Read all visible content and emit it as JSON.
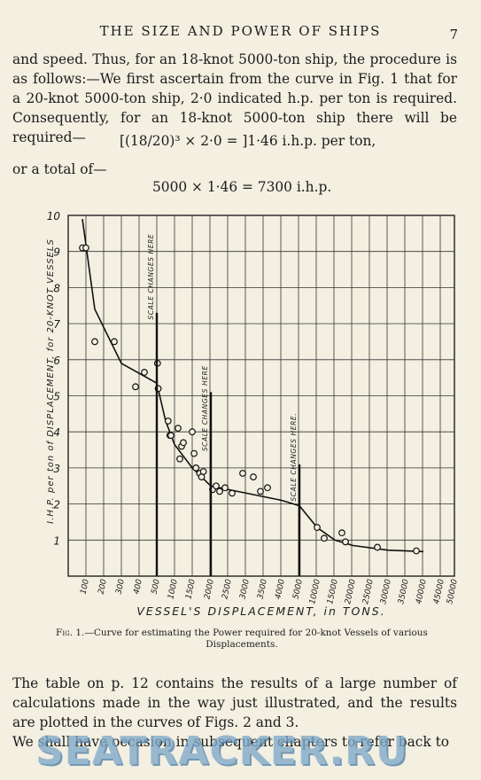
{
  "header": {
    "running_title": "THE SIZE AND POWER OF SHIPS",
    "page_number": "7"
  },
  "body": {
    "paragraph_1": "and speed. Thus, for an 18-knot 5000-ton ship, the procedure is as follows:—We first ascertain from the curve in Fig. 1 that for a 20-knot 5000-ton ship, 2·0 indicated h.p. per ton is required. Consequently, for an 18-knot 5000-ton ship there will be required—",
    "equation_1": "[(18/20)³ × 2·0 = ]1·46 i.h.p. per ton,",
    "paragraph_2": "or a total of—",
    "equation_2": "5000 × 1·46 = 7300 i.h.p.",
    "paragraph_3": "The table on p. 12 contains the results of a large number of calculations made in the way just illustrated, and the results are plotted in the curves of Figs. 2 and 3.",
    "paragraph_4": "We shall have occasion in subsequent chapters to refer back to"
  },
  "figure": {
    "caption_label": "Fig. 1.",
    "caption_text": "—Curve for estimating the Power required for 20-knot Vessels of various Displacements."
  },
  "chart_data": {
    "type": "scatter",
    "title": "",
    "xlabel": "VESSEL'S DISPLACEMENT, in TONS.",
    "ylabel": "I.H.P. per ton of DISPLACEMENT, for 20-KNOT VESSELS",
    "x_scale": "piecewise (scale changes at 500, 2000 and 5000 tons)",
    "x_ticks": [
      "100",
      "200",
      "300",
      "400",
      "500",
      "1000",
      "1500",
      "2000",
      "2500",
      "3000",
      "3500",
      "4000",
      "5000",
      "10000",
      "15000",
      "20000",
      "25000",
      "30000",
      "35000",
      "40000",
      "45000",
      "50000"
    ],
    "y_ticks": [
      "1",
      "2",
      "3",
      "4",
      "5",
      "6",
      "7",
      "8",
      "9",
      "10"
    ],
    "ylim": [
      0,
      10
    ],
    "grid": true,
    "annotations": [
      "SCALE CHANGES HERE",
      "SCALE CHANGES HERE",
      "SCALE CHANGES HERE."
    ],
    "points": [
      {
        "x": 80,
        "y": 9.1
      },
      {
        "x": 100,
        "y": 9.1
      },
      {
        "x": 150,
        "y": 6.5
      },
      {
        "x": 260,
        "y": 6.5
      },
      {
        "x": 380,
        "y": 5.25
      },
      {
        "x": 430,
        "y": 5.65
      },
      {
        "x": 520,
        "y": 5.9
      },
      {
        "x": 540,
        "y": 5.2
      },
      {
        "x": 820,
        "y": 4.3
      },
      {
        "x": 870,
        "y": 3.9
      },
      {
        "x": 900,
        "y": 3.9
      },
      {
        "x": 1100,
        "y": 4.1
      },
      {
        "x": 1150,
        "y": 3.25
      },
      {
        "x": 1200,
        "y": 3.6
      },
      {
        "x": 1250,
        "y": 3.7
      },
      {
        "x": 1500,
        "y": 4.0
      },
      {
        "x": 1550,
        "y": 3.4
      },
      {
        "x": 1600,
        "y": 3.0
      },
      {
        "x": 1700,
        "y": 2.85
      },
      {
        "x": 1750,
        "y": 2.75
      },
      {
        "x": 1800,
        "y": 2.9
      },
      {
        "x": 2050,
        "y": 2.4
      },
      {
        "x": 2150,
        "y": 2.5
      },
      {
        "x": 2250,
        "y": 2.35
      },
      {
        "x": 2400,
        "y": 2.45
      },
      {
        "x": 2600,
        "y": 2.3
      },
      {
        "x": 2900,
        "y": 2.85
      },
      {
        "x": 3200,
        "y": 2.75
      },
      {
        "x": 3400,
        "y": 2.35
      },
      {
        "x": 3600,
        "y": 2.45
      },
      {
        "x": 10000,
        "y": 1.35
      },
      {
        "x": 12000,
        "y": 1.05
      },
      {
        "x": 17000,
        "y": 1.2
      },
      {
        "x": 18000,
        "y": 0.95
      },
      {
        "x": 27000,
        "y": 0.8
      },
      {
        "x": 38000,
        "y": 0.7
      }
    ],
    "curve": [
      {
        "x": 80,
        "y": 9.9
      },
      {
        "x": 150,
        "y": 7.4
      },
      {
        "x": 300,
        "y": 5.9
      },
      {
        "x": 500,
        "y": 5.35
      },
      {
        "x": 750,
        "y": 4.3
      },
      {
        "x": 1000,
        "y": 3.65
      },
      {
        "x": 1500,
        "y": 3.0
      },
      {
        "x": 2000,
        "y": 2.5
      },
      {
        "x": 3000,
        "y": 2.3
      },
      {
        "x": 4000,
        "y": 2.1
      },
      {
        "x": 5000,
        "y": 1.95
      },
      {
        "x": 10000,
        "y": 1.35
      },
      {
        "x": 15000,
        "y": 1.0
      },
      {
        "x": 20000,
        "y": 0.85
      },
      {
        "x": 30000,
        "y": 0.72
      },
      {
        "x": 40000,
        "y": 0.68
      }
    ]
  },
  "watermark": {
    "text": "SEATRACKER.RU"
  }
}
